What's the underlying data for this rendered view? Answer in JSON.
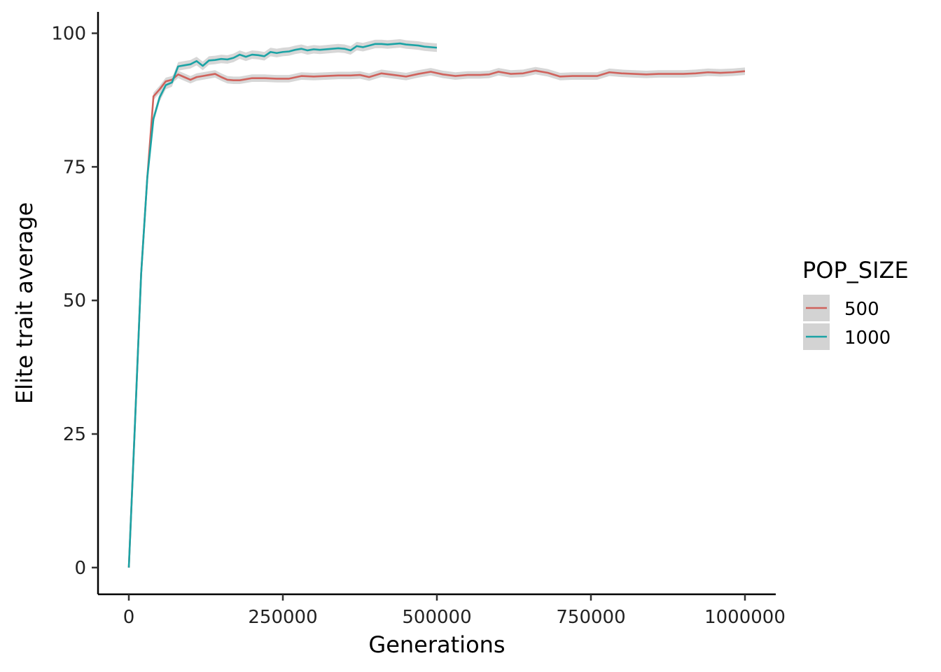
{
  "chart_data": {
    "type": "line",
    "xlabel": "Generations",
    "ylabel": "Elite trait average",
    "xlim": [
      -50000,
      1050000
    ],
    "ylim": [
      -5,
      104
    ],
    "x_ticks": [
      0,
      250000,
      500000,
      750000,
      1000000
    ],
    "x_tick_labels": [
      "0",
      "250000",
      "500000",
      "750000",
      "1000000"
    ],
    "y_ticks": [
      0,
      25,
      50,
      75,
      100
    ],
    "y_tick_labels": [
      "0",
      "25",
      "50",
      "75",
      "100"
    ],
    "grid": false,
    "legend": {
      "title": "POP_SIZE",
      "position": "right",
      "ribbon_color": "#d3d3d3"
    },
    "series": [
      {
        "name": "500",
        "color": "#d0625c",
        "ribbon_halfwidth": 0.7,
        "points": [
          [
            0,
            0
          ],
          [
            10000,
            27
          ],
          [
            20000,
            55
          ],
          [
            30000,
            73
          ],
          [
            40000,
            88.2
          ],
          [
            50000,
            89.5
          ],
          [
            60000,
            91
          ],
          [
            70000,
            91.3
          ],
          [
            80000,
            92.3
          ],
          [
            90000,
            91.8
          ],
          [
            100000,
            91.3
          ],
          [
            110000,
            91.8
          ],
          [
            120000,
            92
          ],
          [
            130000,
            92.2
          ],
          [
            140000,
            92.4
          ],
          [
            150000,
            91.8
          ],
          [
            160000,
            91.3
          ],
          [
            170000,
            91.2
          ],
          [
            180000,
            91.2
          ],
          [
            190000,
            91.4
          ],
          [
            200000,
            91.6
          ],
          [
            220000,
            91.6
          ],
          [
            240000,
            91.5
          ],
          [
            260000,
            91.5
          ],
          [
            280000,
            92
          ],
          [
            300000,
            91.9
          ],
          [
            320000,
            92
          ],
          [
            340000,
            92.1
          ],
          [
            360000,
            92.1
          ],
          [
            375000,
            92.2
          ],
          [
            390000,
            91.8
          ],
          [
            410000,
            92.5
          ],
          [
            430000,
            92.2
          ],
          [
            450000,
            91.9
          ],
          [
            470000,
            92.4
          ],
          [
            490000,
            92.8
          ],
          [
            510000,
            92.3
          ],
          [
            530000,
            92
          ],
          [
            550000,
            92.2
          ],
          [
            570000,
            92.2
          ],
          [
            585000,
            92.3
          ],
          [
            600000,
            92.8
          ],
          [
            620000,
            92.4
          ],
          [
            640000,
            92.5
          ],
          [
            660000,
            93
          ],
          [
            680000,
            92.6
          ],
          [
            700000,
            91.9
          ],
          [
            720000,
            92
          ],
          [
            740000,
            92
          ],
          [
            760000,
            92
          ],
          [
            780000,
            92.7
          ],
          [
            800000,
            92.5
          ],
          [
            820000,
            92.4
          ],
          [
            840000,
            92.3
          ],
          [
            860000,
            92.4
          ],
          [
            880000,
            92.4
          ],
          [
            900000,
            92.4
          ],
          [
            920000,
            92.5
          ],
          [
            940000,
            92.7
          ],
          [
            960000,
            92.6
          ],
          [
            980000,
            92.7
          ],
          [
            1000000,
            92.9
          ]
        ]
      },
      {
        "name": "1000",
        "color": "#1ba3a5",
        "ribbon_halfwidth": 0.8,
        "points": [
          [
            0,
            0
          ],
          [
            10000,
            27
          ],
          [
            20000,
            55
          ],
          [
            30000,
            73
          ],
          [
            40000,
            84
          ],
          [
            50000,
            88
          ],
          [
            60000,
            90.3
          ],
          [
            70000,
            90.8
          ],
          [
            80000,
            93.8
          ],
          [
            90000,
            94
          ],
          [
            100000,
            94.2
          ],
          [
            110000,
            94.8
          ],
          [
            120000,
            93.9
          ],
          [
            130000,
            94.9
          ],
          [
            140000,
            95
          ],
          [
            150000,
            95.2
          ],
          [
            160000,
            95.1
          ],
          [
            170000,
            95.4
          ],
          [
            180000,
            96
          ],
          [
            190000,
            95.6
          ],
          [
            200000,
            96
          ],
          [
            210000,
            95.9
          ],
          [
            220000,
            95.7
          ],
          [
            230000,
            96.5
          ],
          [
            240000,
            96.3
          ],
          [
            250000,
            96.5
          ],
          [
            260000,
            96.6
          ],
          [
            270000,
            96.9
          ],
          [
            280000,
            97.1
          ],
          [
            290000,
            96.8
          ],
          [
            300000,
            97
          ],
          [
            310000,
            96.9
          ],
          [
            320000,
            97
          ],
          [
            330000,
            97.1
          ],
          [
            340000,
            97.2
          ],
          [
            350000,
            97.1
          ],
          [
            360000,
            96.8
          ],
          [
            370000,
            97.6
          ],
          [
            380000,
            97.4
          ],
          [
            390000,
            97.7
          ],
          [
            400000,
            98
          ],
          [
            410000,
            98
          ],
          [
            420000,
            97.9
          ],
          [
            430000,
            98
          ],
          [
            440000,
            98.1
          ],
          [
            450000,
            97.9
          ],
          [
            460000,
            97.8
          ],
          [
            470000,
            97.7
          ],
          [
            480000,
            97.5
          ],
          [
            490000,
            97.4
          ],
          [
            500000,
            97.3
          ]
        ]
      }
    ]
  }
}
